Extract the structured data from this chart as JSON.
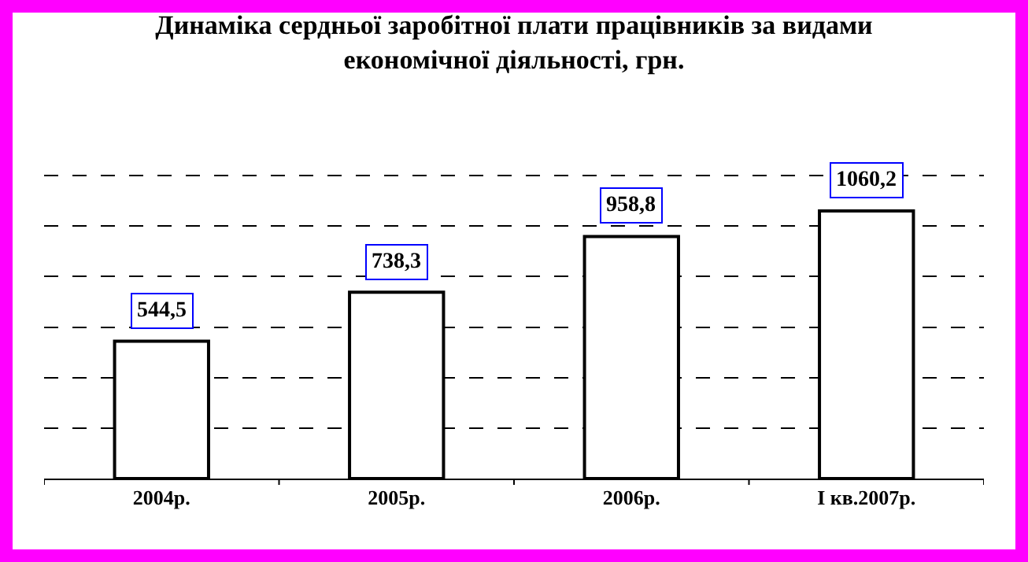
{
  "chart_data": {
    "type": "bar",
    "title": "Динаміка сердньої заробітної плати працівників за видами економічної діяльності, грн.",
    "categories": [
      "2004р.",
      "2005р.",
      "2006р.",
      "І кв.2007р."
    ],
    "values": [
      544.5,
      738.3,
      958.8,
      1060.2
    ],
    "value_labels": [
      "544,5",
      "738,3",
      "958,8",
      "1060,2"
    ],
    "color": "#ffffff",
    "tick_labels": "x",
    "grid": "y",
    "legend": false
  }
}
